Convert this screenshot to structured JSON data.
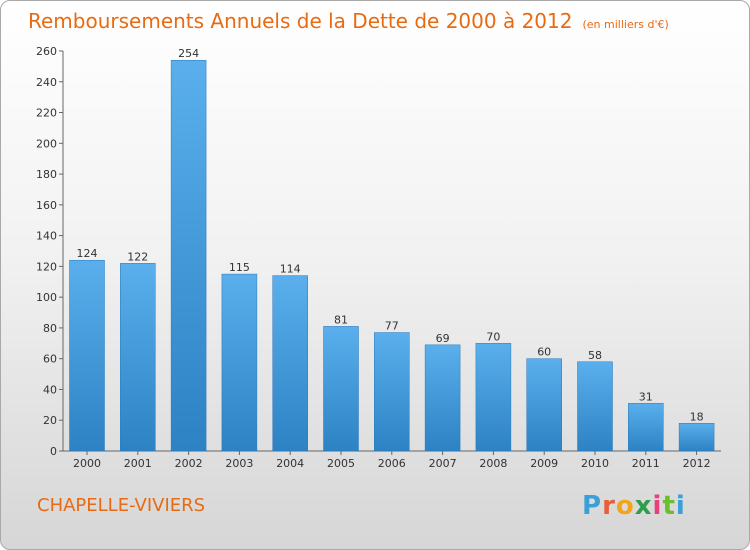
{
  "title": "Remboursements Annuels de la Dette de 2000 à 2012",
  "subtitle": "(en milliers d'€)",
  "commune": "CHAPELLE-VIVIERS",
  "logo": {
    "letters": [
      "P",
      "r",
      "o",
      "x",
      "i",
      "t",
      "i"
    ],
    "colors": [
      "#3aa0d8",
      "#e85d3a",
      "#f2a51a",
      "#2e9e4a",
      "#e8407a",
      "#6abf2e",
      "#3aa0d8"
    ]
  },
  "colors": {
    "bar_light": "#5aafec",
    "bar_dark": "#2d82c4",
    "title": "#e86a12"
  },
  "chart_data": {
    "type": "bar",
    "title": "Remboursements Annuels de la Dette de 2000 à 2012",
    "xlabel": "",
    "ylabel": "",
    "categories": [
      "2000",
      "2001",
      "2002",
      "2003",
      "2004",
      "2005",
      "2006",
      "2007",
      "2008",
      "2009",
      "2010",
      "2011",
      "2012"
    ],
    "values": [
      124,
      122,
      254,
      115,
      114,
      81,
      77,
      69,
      70,
      60,
      58,
      31,
      18
    ],
    "ylim": [
      0,
      260
    ],
    "yticks": [
      0,
      20,
      40,
      60,
      80,
      100,
      120,
      140,
      160,
      180,
      200,
      220,
      240,
      260
    ],
    "grid": false
  }
}
